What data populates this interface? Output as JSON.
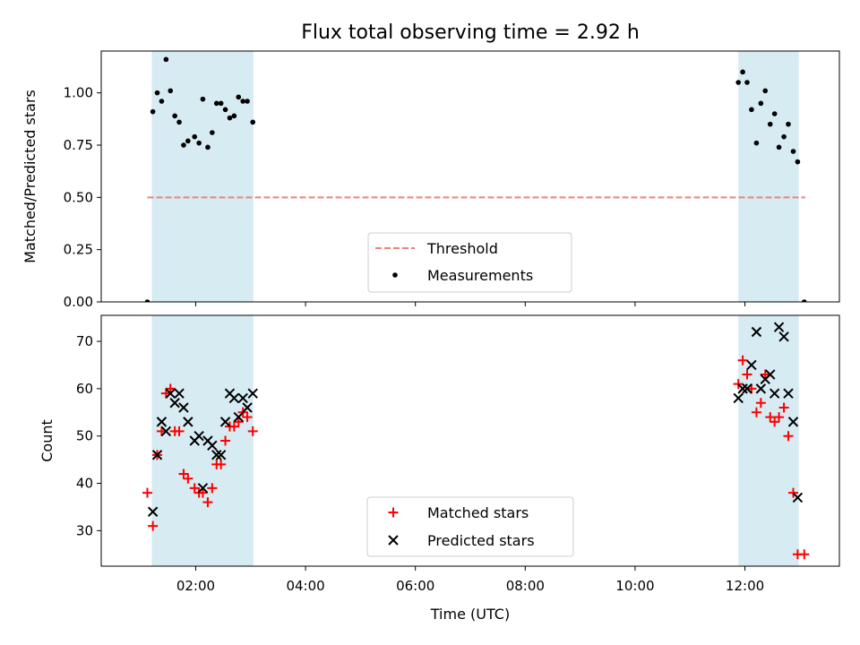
{
  "chart_data": [
    {
      "type": "scatter",
      "title": "Flux total observing time = 2.92 h",
      "xlabel": "",
      "ylabel": "Matched/Predicted stars",
      "xlim_hours": [
        0.28,
        13.72
      ],
      "ylim": [
        0,
        1.2
      ],
      "yticks": [
        0.0,
        0.25,
        0.5,
        0.75,
        1.0
      ],
      "ytick_labels": [
        "0.00",
        "0.25",
        "0.50",
        "0.75",
        "1.00"
      ],
      "observing_windows_hours": [
        [
          1.2,
          3.05
        ],
        [
          11.88,
          12.98
        ]
      ],
      "threshold": {
        "name": "Threshold",
        "value": 0.5,
        "x_range_hours": [
          1.12,
          13.1
        ],
        "color": "#f08080"
      },
      "legend_position": "lower center",
      "series": [
        {
          "name": "Measurements",
          "color": "#000000",
          "marker": "dot",
          "x": [
            1.12,
            1.22,
            1.3,
            1.38,
            1.46,
            1.54,
            1.62,
            1.7,
            1.78,
            1.86,
            1.98,
            2.06,
            2.13,
            2.22,
            2.3,
            2.38,
            2.46,
            2.54,
            2.62,
            2.7,
            2.78,
            2.86,
            2.94,
            3.04,
            11.88,
            11.96,
            12.04,
            12.12,
            12.21,
            12.29,
            12.37,
            12.46,
            12.54,
            12.62,
            12.71,
            12.79,
            12.88,
            12.96,
            13.08
          ],
          "y": [
            0.0,
            0.91,
            1.0,
            0.96,
            1.16,
            1.01,
            0.89,
            0.86,
            0.75,
            0.77,
            0.79,
            0.76,
            0.97,
            0.74,
            0.81,
            0.95,
            0.95,
            0.92,
            0.88,
            0.89,
            0.98,
            0.96,
            0.96,
            0.86,
            1.05,
            1.1,
            1.05,
            0.92,
            0.76,
            0.95,
            1.01,
            0.85,
            0.9,
            0.74,
            0.79,
            0.85,
            0.72,
            0.67,
            0.0
          ]
        }
      ]
    },
    {
      "type": "scatter",
      "title": "",
      "xlabel": "Time (UTC)",
      "ylabel": "Count",
      "xlim_hours": [
        0.28,
        13.72
      ],
      "ylim": [
        22.5,
        75.5
      ],
      "yticks": [
        30,
        40,
        50,
        60,
        70
      ],
      "ytick_labels": [
        "30",
        "40",
        "50",
        "60",
        "70"
      ],
      "xticks_hours": [
        2,
        4,
        6,
        8,
        10,
        12
      ],
      "xtick_labels": [
        "02:00",
        "04:00",
        "06:00",
        "08:00",
        "10:00",
        "12:00"
      ],
      "observing_windows_hours": [
        [
          1.2,
          3.05
        ],
        [
          11.88,
          12.98
        ]
      ],
      "legend_position": "lower center",
      "series": [
        {
          "name": "Matched stars",
          "color": "#ff0000",
          "marker": "plus",
          "x": [
            1.12,
            1.22,
            1.3,
            1.38,
            1.46,
            1.54,
            1.62,
            1.7,
            1.78,
            1.86,
            1.98,
            2.06,
            2.13,
            2.22,
            2.3,
            2.38,
            2.46,
            2.54,
            2.62,
            2.7,
            2.78,
            2.86,
            2.94,
            3.04,
            11.88,
            11.96,
            12.04,
            12.12,
            12.21,
            12.29,
            12.37,
            12.46,
            12.54,
            12.62,
            12.71,
            12.79,
            12.88,
            12.96,
            13.08
          ],
          "y": [
            38,
            31,
            46,
            51,
            59,
            60,
            51,
            51,
            42,
            41,
            39,
            38,
            38,
            36,
            39,
            44,
            44,
            49,
            52,
            52,
            53,
            55,
            54,
            51,
            61,
            66,
            63,
            60,
            55,
            57,
            63,
            54,
            53,
            54,
            56,
            50,
            38,
            25,
            25
          ]
        },
        {
          "name": "Predicted stars",
          "color": "#000000",
          "marker": "x",
          "x": [
            1.22,
            1.3,
            1.38,
            1.46,
            1.54,
            1.62,
            1.7,
            1.78,
            1.86,
            1.98,
            2.06,
            2.13,
            2.22,
            2.3,
            2.38,
            2.46,
            2.54,
            2.62,
            2.7,
            2.78,
            2.86,
            2.94,
            3.04,
            11.88,
            11.96,
            12.04,
            12.12,
            12.21,
            12.29,
            12.37,
            12.46,
            12.54,
            12.62,
            12.71,
            12.79,
            12.88,
            12.96
          ],
          "y": [
            34,
            46,
            53,
            51,
            59,
            57,
            59,
            56,
            53,
            49,
            50,
            39,
            49,
            48,
            46,
            46,
            53,
            59,
            58,
            54,
            58,
            56,
            59,
            58,
            60,
            60,
            65,
            72,
            60,
            62,
            63,
            59,
            73,
            71,
            59,
            53,
            37
          ]
        }
      ]
    }
  ]
}
